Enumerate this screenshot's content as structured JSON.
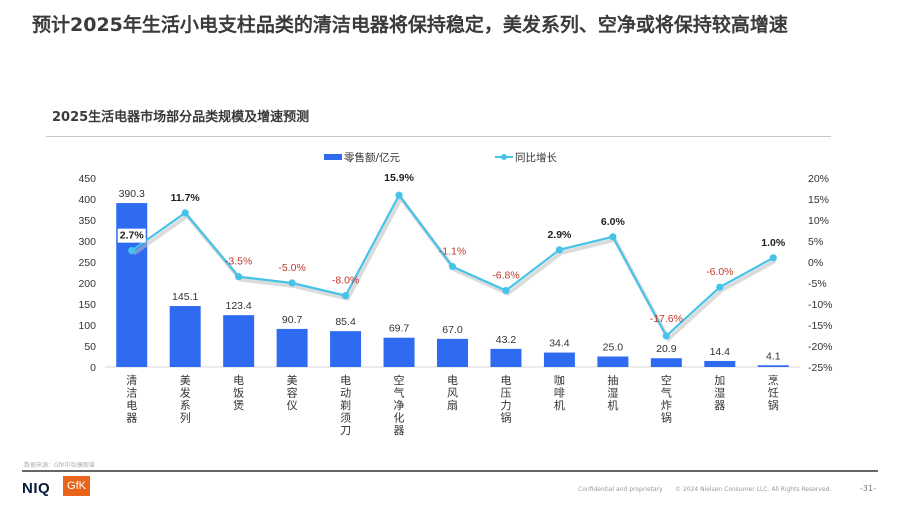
{
  "page": {
    "title": "预计2025年生活小电支柱品类的清洁电器将保持稳定，美发系列、空净或将保持较高增速",
    "source": "数据来源：GfK中怡康图谱",
    "footer_confidential": "Confidential and proprietary",
    "footer_copyright": "© 2024 Nielsen Consumer LLC. All Rights Reserved.",
    "page_number": "-31-",
    "logo_niq": "NIQ",
    "logo_gfk": "GfK"
  },
  "colors": {
    "bar": "#2f6bf0",
    "line": "#45c3e8",
    "negative_label": "#c0392b",
    "positive_label": "#222222"
  },
  "chart_data": {
    "type": "bar+line",
    "title": "2025生活电器市场部分品类规模及增速预测",
    "categories": [
      "清洁电器",
      "美发系列",
      "电饭煲",
      "美容仪",
      "电动剃须刀",
      "空气净化器",
      "电风扇",
      "电压力锅",
      "咖啡机",
      "抽湿机",
      "空气炸锅",
      "加湿器",
      "烹饪锅"
    ],
    "series": [
      {
        "name": "零售额/亿元",
        "type": "bar",
        "axis": "left",
        "values": [
          390.3,
          145.1,
          123.4,
          90.7,
          85.4,
          69.7,
          67.0,
          43.2,
          34.4,
          25.0,
          20.9,
          14.4,
          4.1
        ],
        "labels": [
          "390.3",
          "145.1",
          "123.4",
          "90.7",
          "85.4",
          "69.7",
          "67.0",
          "43.2",
          "34.4",
          "25.0",
          "20.9",
          "14.4",
          "4.1"
        ]
      },
      {
        "name": "同比增长",
        "type": "line",
        "axis": "right",
        "values": [
          2.7,
          11.7,
          -3.5,
          -5.0,
          -8.0,
          15.9,
          -1.1,
          -6.8,
          2.9,
          6.0,
          -17.6,
          -6.0,
          1.0
        ],
        "labels": [
          "2.7%",
          "11.7%",
          "-3.5%",
          "-5.0%",
          "-8.0%",
          "15.9%",
          "-1.1%",
          "-6.8%",
          "2.9%",
          "6.0%",
          "-17.6%",
          "-6.0%",
          "1.0%"
        ]
      }
    ],
    "y_left": {
      "min": 0,
      "max": 450,
      "ticks": [
        "0",
        "50",
        "100",
        "150",
        "200",
        "250",
        "300",
        "350",
        "400",
        "450"
      ]
    },
    "y_right": {
      "min": -25,
      "max": 20,
      "ticks": [
        "-25%",
        "-20%",
        "-15%",
        "-10%",
        "-5%",
        "0%",
        "5%",
        "10%",
        "15%",
        "20%"
      ]
    },
    "legend": {
      "position": "top",
      "items": [
        "零售额/亿元",
        "同比增长"
      ]
    },
    "grid": false
  }
}
